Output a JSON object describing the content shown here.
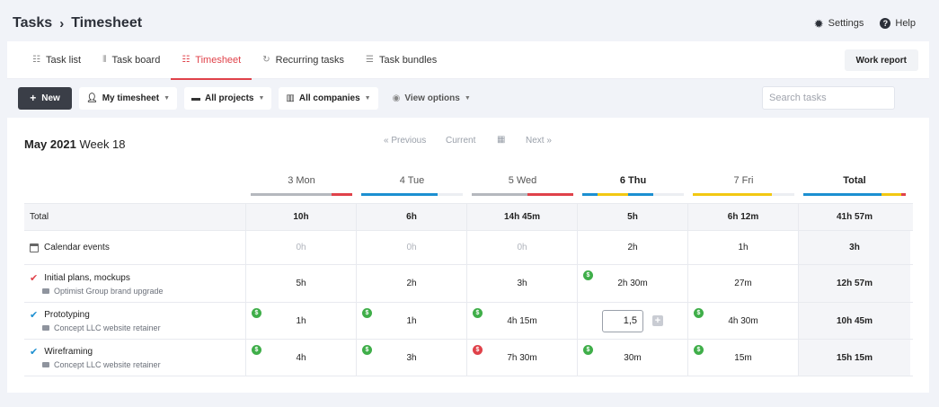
{
  "breadcrumb": {
    "root": "Tasks",
    "separator": "›",
    "current": "Timesheet"
  },
  "top_actions": {
    "settings": "Settings",
    "help": "Help",
    "help_icon": "?"
  },
  "tabs": [
    {
      "label": "Task list",
      "icon": "list-icon",
      "glyph": "☷"
    },
    {
      "label": "Task board",
      "icon": "board-icon",
      "glyph": "⦀"
    },
    {
      "label": "Timesheet",
      "icon": "timesheet-icon",
      "glyph": "☷",
      "active": true
    },
    {
      "label": "Recurring tasks",
      "icon": "recurring-icon",
      "glyph": "↻"
    },
    {
      "label": "Task bundles",
      "icon": "bundle-icon",
      "glyph": "☰"
    }
  ],
  "work_report": "Work report",
  "toolbar": {
    "new_label": "New",
    "my_timesheet": "My timesheet",
    "all_projects": "All projects",
    "all_companies": "All companies",
    "view_options": "View options"
  },
  "search": {
    "placeholder": "Search tasks"
  },
  "period": {
    "month": "May 2021",
    "week": "Week 18"
  },
  "nav": {
    "previous": "« Previous",
    "current": "Current",
    "next": "Next »"
  },
  "colors": {
    "accent": "#e0424a",
    "blue": "#1c8fd1",
    "yellow": "#f2c812",
    "grey": "#b5b8be",
    "green": "#3fae49"
  },
  "days": [
    {
      "label": "3 Mon",
      "segments": [
        {
          "color": "#b5b8be",
          "fraction": 0.8
        },
        {
          "color": "#e0424a",
          "fraction": 0.2
        }
      ]
    },
    {
      "label": "4 Tue",
      "segments": [
        {
          "color": "#1c8fd1",
          "fraction": 0.75
        },
        {
          "color": "#eceef2",
          "fraction": 0.25
        }
      ]
    },
    {
      "label": "5 Wed",
      "segments": [
        {
          "color": "#b5b8be",
          "fraction": 0.55
        },
        {
          "color": "#e0424a",
          "fraction": 0.45
        }
      ]
    },
    {
      "label": "6 Thu",
      "today": true,
      "segments": [
        {
          "color": "#1c8fd1",
          "fraction": 0.15
        },
        {
          "color": "#f2c812",
          "fraction": 0.3
        },
        {
          "color": "#1c8fd1",
          "fraction": 0.25
        },
        {
          "color": "#eceef2",
          "fraction": 0.3
        }
      ]
    },
    {
      "label": "7 Fri",
      "segments": [
        {
          "color": "#f2c812",
          "fraction": 0.78
        },
        {
          "color": "#eceef2",
          "fraction": 0.22
        }
      ]
    }
  ],
  "total_label": "Total",
  "total_segments": [
    {
      "color": "#1c8fd1",
      "fraction": 0.76
    },
    {
      "color": "#f2c812",
      "fraction": 0.2
    },
    {
      "color": "#e0424a",
      "fraction": 0.04
    }
  ],
  "rows": [
    {
      "type": "total",
      "label": "Total",
      "values": [
        "10h",
        "6h",
        "14h 45m",
        "5h",
        "6h 12m"
      ],
      "total": "41h 57m"
    },
    {
      "type": "calendar",
      "label": "Calendar events",
      "values": [
        "0h",
        "0h",
        "0h",
        "2h",
        "1h"
      ],
      "muted": [
        true,
        true,
        true,
        false,
        false
      ],
      "total": "3h"
    },
    {
      "type": "task",
      "label": "Initial plans, mockups",
      "sub": "Optimist Group brand upgrade",
      "check_color": "#e0424a",
      "values": [
        "5h",
        "2h",
        "3h",
        "2h 30m",
        "27m"
      ],
      "badges": [
        null,
        null,
        null,
        "green",
        null
      ],
      "total": "12h 57m"
    },
    {
      "type": "task",
      "label": "Prototyping",
      "sub": "Concept LLC website retainer",
      "check_color": "#1c8fd1",
      "values": [
        "1h",
        "1h",
        "4h 15m",
        "",
        "4h 30m"
      ],
      "badges": [
        "green",
        "green",
        "green",
        null,
        "green"
      ],
      "editing": {
        "index": 3,
        "value": "1,5"
      },
      "total": "10h 45m"
    },
    {
      "type": "task",
      "label": "Wireframing",
      "sub": "Concept LLC website retainer",
      "check_color": "#1c8fd1",
      "values": [
        "4h",
        "3h",
        "7h 30m",
        "30m",
        "15m"
      ],
      "badges": [
        "green",
        "green",
        "red",
        "green",
        "green"
      ],
      "total": "15h 15m"
    }
  ],
  "badge_glyph": "$"
}
